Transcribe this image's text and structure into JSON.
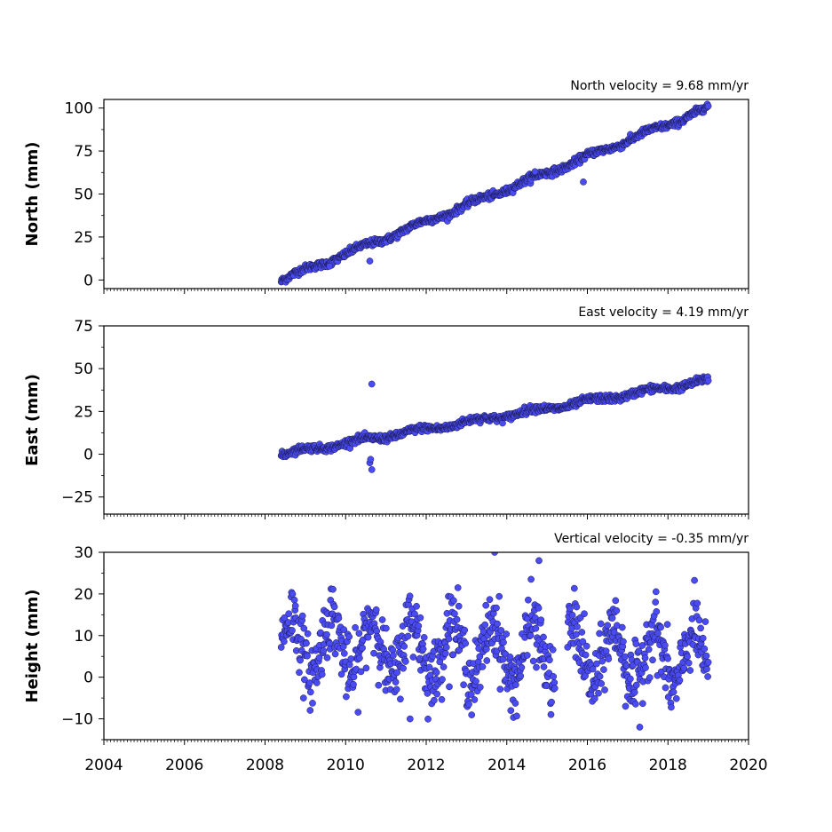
{
  "colors": {
    "point_fill": "#4b4bf5",
    "point_edge": "#1a1a50",
    "axis": "#000000"
  },
  "chart_data": [
    {
      "type": "scatter",
      "title": "North velocity = 9.68 mm/yr",
      "ylabel": "North (mm)",
      "xlim": [
        2004,
        2020
      ],
      "ylim": [
        -5,
        105
      ],
      "yticks": [
        0,
        25,
        50,
        75,
        100
      ],
      "ytick_labels": [
        "0",
        "25",
        "50",
        "75",
        "100"
      ],
      "x_start": 2008.4,
      "x_end": 2019.0,
      "velocity_mm_per_yr": 9.68,
      "start_value": 0,
      "end_value": 100,
      "outliers": [
        [
          2010.6,
          11
        ],
        [
          2014.7,
          63
        ],
        [
          2015.9,
          57
        ],
        [
          2009.6,
          8
        ]
      ]
    },
    {
      "type": "scatter",
      "title": "East velocity = 4.19 mm/yr",
      "ylabel": "East (mm)",
      "xlim": [
        2004,
        2020
      ],
      "ylim": [
        -35,
        75
      ],
      "yticks": [
        -25,
        0,
        25,
        50,
        75
      ],
      "ytick_labels": [
        "−25",
        "0",
        "25",
        "50",
        "75"
      ],
      "x_start": 2008.4,
      "x_end": 2019.0,
      "velocity_mm_per_yr": 4.19,
      "start_value": 0,
      "end_value": 43,
      "outliers": [
        [
          2010.65,
          41
        ],
        [
          2010.65,
          -9
        ],
        [
          2010.6,
          -5
        ],
        [
          2010.62,
          -3
        ]
      ]
    },
    {
      "type": "scatter",
      "title": "Vertical velocity = -0.35 mm/yr",
      "ylabel": "Height (mm)",
      "xlabel": "",
      "xlim": [
        2004,
        2020
      ],
      "ylim": [
        -15,
        30
      ],
      "yticks": [
        -10,
        0,
        10,
        20,
        30
      ],
      "ytick_labels": [
        "−10",
        "0",
        "10",
        "20",
        "30"
      ],
      "xticks": [
        2004,
        2006,
        2008,
        2010,
        2012,
        2014,
        2016,
        2018,
        2020
      ],
      "xtick_labels": [
        "2004",
        "2006",
        "2008",
        "2010",
        "2012",
        "2014",
        "2016",
        "2018",
        "2020"
      ],
      "x_start": 2008.4,
      "x_end": 2019.0,
      "velocity_mm_per_yr": -0.35,
      "mean_value": 8,
      "seasonal_amplitude_mm": 7,
      "scatter_mm": 4,
      "data_gap": [
        2015.2,
        2015.5
      ],
      "outliers": [
        [
          2013.7,
          30
        ],
        [
          2014.8,
          28
        ],
        [
          2017.3,
          -12
        ],
        [
          2014.1,
          -8
        ],
        [
          2011.6,
          -10
        ]
      ]
    }
  ]
}
